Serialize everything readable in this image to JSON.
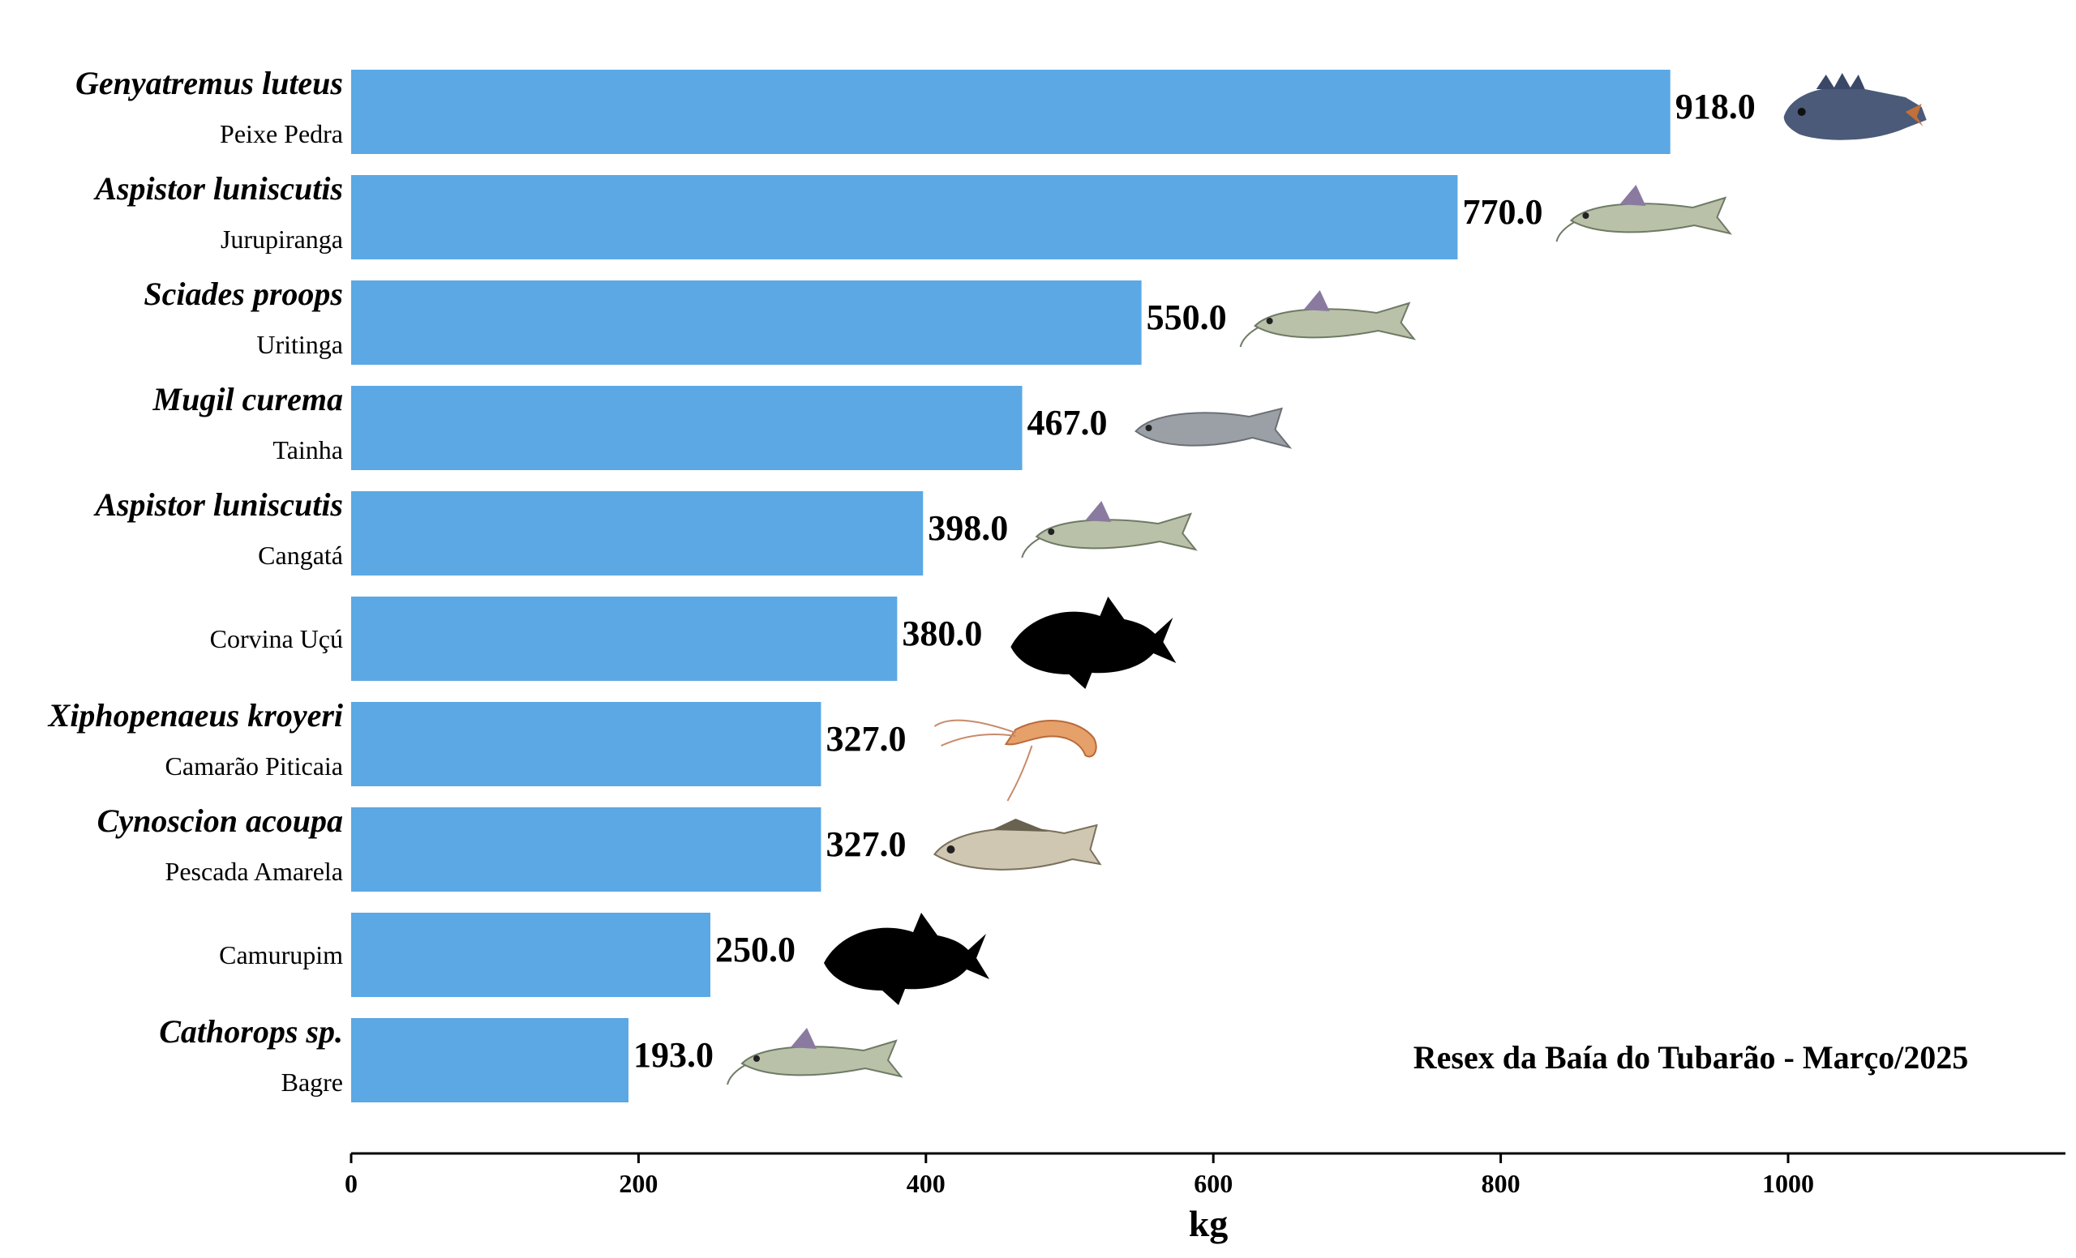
{
  "chart_data": {
    "type": "bar",
    "orientation": "horizontal",
    "categories": [
      {
        "scientific": "Genyatremus luteus",
        "common": "Peixe Pedra",
        "icon": "grouper-fish-icon"
      },
      {
        "scientific": "Aspistor luniscutis",
        "common": "Jurupiranga",
        "icon": "catfish-icon"
      },
      {
        "scientific": "Sciades proops",
        "common": "Uritinga",
        "icon": "catfish-icon"
      },
      {
        "scientific": "Mugil curema",
        "common": "Tainha",
        "icon": "mullet-fish-icon"
      },
      {
        "scientific": "Aspistor luniscutis",
        "common": "Cangatá",
        "icon": "catfish-icon"
      },
      {
        "scientific": "",
        "common": "Corvina Uçú",
        "icon": "fish-silhouette-icon"
      },
      {
        "scientific": "Xiphopenaeus kroyeri",
        "common": "Camarão Piticaia",
        "icon": "shrimp-icon"
      },
      {
        "scientific": "Cynoscion acoupa",
        "common": "Pescada Amarela",
        "icon": "weakfish-icon"
      },
      {
        "scientific": "",
        "common": "Camurupim",
        "icon": "fish-silhouette-icon"
      },
      {
        "scientific": "Cathorops sp.",
        "common": "Bagre",
        "icon": "catfish-icon"
      }
    ],
    "values": [
      918.0,
      770.0,
      550.0,
      467.0,
      398.0,
      380.0,
      327.0,
      327.0,
      250.0,
      193.0
    ],
    "value_labels": [
      "918.0",
      "770.0",
      "550.0",
      "467.0",
      "398.0",
      "380.0",
      "327.0",
      "327.0",
      "250.0",
      "193.0"
    ],
    "xlabel": "kg",
    "xlim": [
      0,
      1190
    ],
    "xticks": [
      0,
      200,
      400,
      600,
      800,
      1000
    ],
    "annotation": "Resex da Baía do Tubarão - Março/2025",
    "grid": false,
    "colors": {
      "bar": "#5BA8E5",
      "axis": "#000000",
      "text": "#000000"
    }
  }
}
